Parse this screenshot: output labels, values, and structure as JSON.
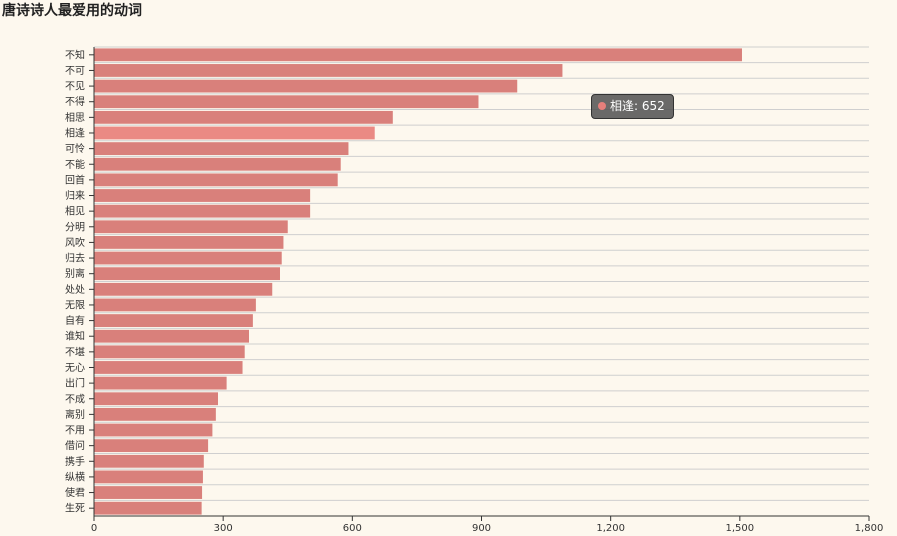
{
  "title": "唐诗诗人最爱用的动词",
  "colors": {
    "bar": "#d9807b",
    "bar_highlight": "#ea8a84",
    "background": "#fdf8ee",
    "grid": "#cfcfcf",
    "axis": "#333333"
  },
  "tooltip": {
    "category": "相逢",
    "value_text": "相逢: 652"
  },
  "chart_data": {
    "type": "bar",
    "orientation": "horizontal",
    "title": "唐诗诗人最爱用的动词",
    "categories": [
      "不知",
      "不可",
      "不见",
      "不得",
      "相思",
      "相逢",
      "可怜",
      "不能",
      "回首",
      "归来",
      "相见",
      "分明",
      "风吹",
      "归去",
      "别离",
      "处处",
      "无限",
      "自有",
      "谁知",
      "不堪",
      "无心",
      "出门",
      "不成",
      "离别",
      "不用",
      "借问",
      "携手",
      "纵横",
      "使君",
      "生死"
    ],
    "values": [
      1505,
      1088,
      983,
      893,
      694,
      652,
      591,
      573,
      566,
      502,
      502,
      450,
      440,
      436,
      432,
      414,
      376,
      369,
      360,
      350,
      345,
      308,
      288,
      283,
      275,
      265,
      255,
      253,
      251,
      250
    ],
    "xlim": [
      0,
      1800
    ],
    "xticks": [
      "0",
      "300",
      "600",
      "900",
      "1,200",
      "1,500",
      "1,800"
    ],
    "xtick_values": [
      0,
      300,
      600,
      900,
      1200,
      1500,
      1800
    ],
    "highlight_category": "相逢",
    "grid": true
  }
}
